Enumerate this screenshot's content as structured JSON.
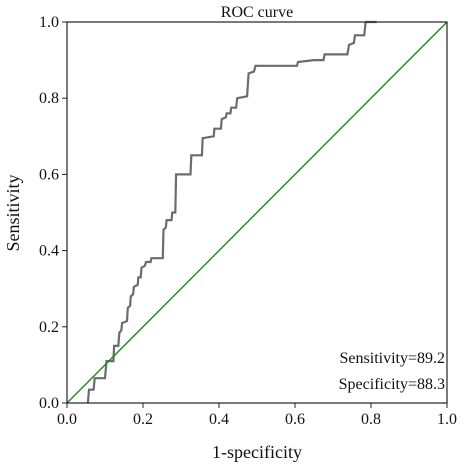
{
  "chart_data": {
    "type": "line",
    "title": "ROC curve",
    "xlabel": "1-specificity",
    "ylabel": "Sensitivity",
    "xlim": [
      0.0,
      1.0
    ],
    "ylim": [
      0.0,
      1.0
    ],
    "x_ticks": [
      "0.0",
      "0.2",
      "0.4",
      "0.6",
      "0.8",
      "1.0"
    ],
    "y_ticks": [
      "0.0",
      "0.2",
      "0.4",
      "0.6",
      "0.8",
      "1.0"
    ],
    "grid": false,
    "series": [
      {
        "color": "#6b6b78",
        "points": [
          [
            0.055,
            0.0
          ],
          [
            0.058,
            0.035
          ],
          [
            0.07,
            0.035
          ],
          [
            0.073,
            0.065
          ],
          [
            0.1,
            0.065
          ],
          [
            0.104,
            0.11
          ],
          [
            0.122,
            0.11
          ],
          [
            0.124,
            0.15
          ],
          [
            0.135,
            0.15
          ],
          [
            0.138,
            0.185
          ],
          [
            0.143,
            0.19
          ],
          [
            0.145,
            0.21
          ],
          [
            0.158,
            0.215
          ],
          [
            0.16,
            0.25
          ],
          [
            0.166,
            0.255
          ],
          [
            0.168,
            0.28
          ],
          [
            0.174,
            0.285
          ],
          [
            0.176,
            0.305
          ],
          [
            0.186,
            0.31
          ],
          [
            0.188,
            0.33
          ],
          [
            0.194,
            0.33
          ],
          [
            0.196,
            0.355
          ],
          [
            0.205,
            0.36
          ],
          [
            0.208,
            0.37
          ],
          [
            0.22,
            0.37
          ],
          [
            0.222,
            0.38
          ],
          [
            0.252,
            0.38
          ],
          [
            0.254,
            0.455
          ],
          [
            0.26,
            0.46
          ],
          [
            0.262,
            0.48
          ],
          [
            0.275,
            0.48
          ],
          [
            0.277,
            0.5
          ],
          [
            0.285,
            0.5
          ],
          [
            0.287,
            0.6
          ],
          [
            0.325,
            0.6
          ],
          [
            0.327,
            0.65
          ],
          [
            0.355,
            0.65
          ],
          [
            0.357,
            0.695
          ],
          [
            0.386,
            0.7
          ],
          [
            0.388,
            0.72
          ],
          [
            0.405,
            0.72
          ],
          [
            0.407,
            0.745
          ],
          [
            0.418,
            0.75
          ],
          [
            0.42,
            0.76
          ],
          [
            0.43,
            0.76
          ],
          [
            0.432,
            0.775
          ],
          [
            0.445,
            0.775
          ],
          [
            0.448,
            0.8
          ],
          [
            0.474,
            0.805
          ],
          [
            0.478,
            0.865
          ],
          [
            0.492,
            0.87
          ],
          [
            0.496,
            0.885
          ],
          [
            0.605,
            0.885
          ],
          [
            0.608,
            0.895
          ],
          [
            0.65,
            0.9
          ],
          [
            0.675,
            0.9
          ],
          [
            0.678,
            0.915
          ],
          [
            0.738,
            0.915
          ],
          [
            0.742,
            0.94
          ],
          [
            0.755,
            0.945
          ],
          [
            0.758,
            0.965
          ],
          [
            0.782,
            0.965
          ],
          [
            0.786,
            1.0
          ],
          [
            0.815,
            1.0
          ]
        ]
      },
      {
        "color": "#1a8a1a",
        "points": [
          [
            0.0,
            0.0
          ],
          [
            1.0,
            1.0
          ]
        ]
      }
    ],
    "annotations": {
      "sensitivity": "Sensitivity=89.2",
      "specificity": "Specificity=88.3"
    }
  }
}
